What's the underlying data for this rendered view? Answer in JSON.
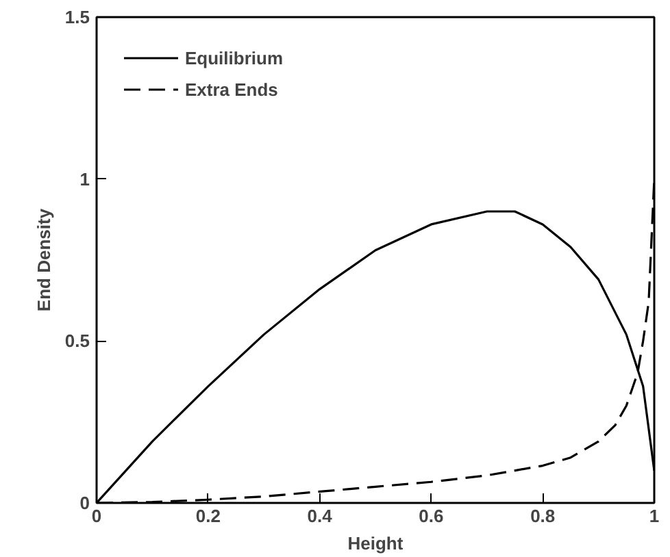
{
  "chart_data": {
    "type": "line",
    "xlabel": "Height",
    "ylabel": "End Density",
    "xlim": [
      0,
      1
    ],
    "ylim": [
      0,
      1.5
    ],
    "xticks": [
      0,
      0.2,
      0.4,
      0.6,
      0.8,
      1
    ],
    "yticks": [
      0,
      0.5,
      1,
      1.5
    ],
    "grid": false,
    "legend": "top left",
    "series": [
      {
        "name": "Equilibrium",
        "color": "#000000",
        "line_style": "solid",
        "x": [
          0,
          0.1,
          0.2,
          0.3,
          0.4,
          0.5,
          0.6,
          0.7,
          0.75,
          0.8,
          0.85,
          0.9,
          0.95,
          0.98,
          1.0
        ],
        "values": [
          0,
          0.19,
          0.36,
          0.52,
          0.66,
          0.78,
          0.86,
          0.9,
          0.9,
          0.86,
          0.79,
          0.69,
          0.52,
          0.36,
          0.1
        ]
      },
      {
        "name": "Extra Ends",
        "color": "#000000",
        "line_style": "dashed",
        "x": [
          0,
          0.1,
          0.2,
          0.3,
          0.4,
          0.5,
          0.6,
          0.7,
          0.8,
          0.85,
          0.9,
          0.93,
          0.95,
          0.97,
          0.98,
          0.99,
          1.0
        ],
        "values": [
          0,
          0.003,
          0.01,
          0.02,
          0.035,
          0.05,
          0.065,
          0.085,
          0.115,
          0.14,
          0.19,
          0.24,
          0.3,
          0.4,
          0.5,
          0.62,
          1.0
        ]
      }
    ]
  }
}
